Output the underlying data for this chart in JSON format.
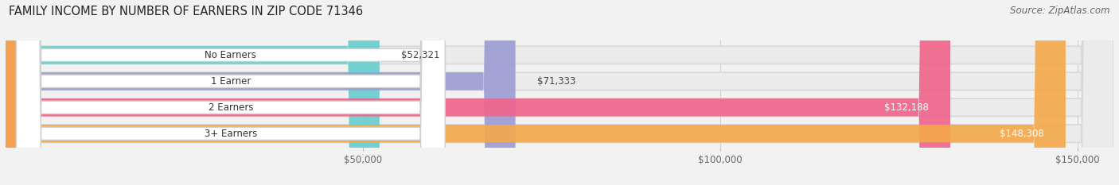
{
  "title": "FAMILY INCOME BY NUMBER OF EARNERS IN ZIP CODE 71346",
  "source": "Source: ZipAtlas.com",
  "categories": [
    "No Earners",
    "1 Earner",
    "2 Earners",
    "3+ Earners"
  ],
  "values": [
    52321,
    71333,
    132188,
    148308
  ],
  "labels": [
    "$52,321",
    "$71,333",
    "$132,188",
    "$148,308"
  ],
  "bar_colors": [
    "#65cece",
    "#9b9bd4",
    "#f0638a",
    "#f5a84a"
  ],
  "background_color": "#f2f2f2",
  "bar_bg_color": "#e8e8e8",
  "xlim": [
    0,
    155000
  ],
  "xticks": [
    50000,
    100000,
    150000
  ],
  "xtick_labels": [
    "$50,000",
    "$100,000",
    "$150,000"
  ],
  "title_fontsize": 10.5,
  "source_fontsize": 8.5,
  "label_fontsize": 8.5,
  "bar_height": 0.68
}
